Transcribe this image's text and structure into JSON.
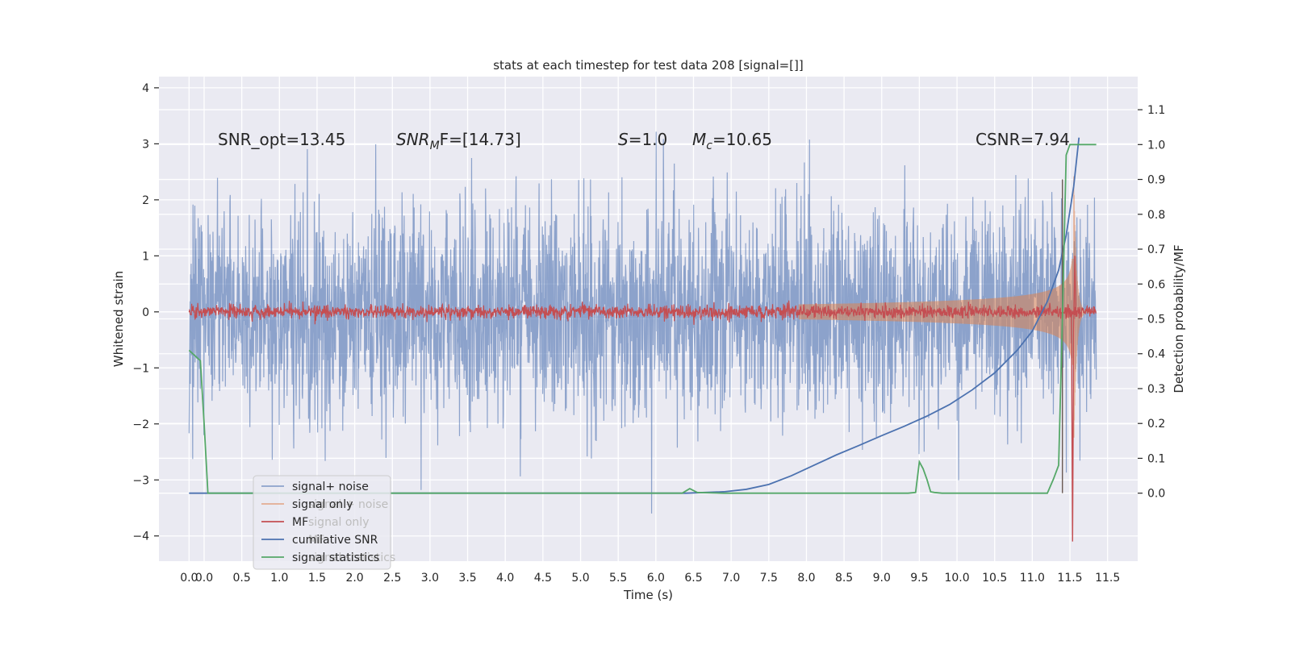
{
  "chart_data": {
    "type": "line",
    "title": "stats at each timestep for test data 208 [signal=[]]",
    "xlabel": "Time (s)",
    "ylabel": "Whitened strain",
    "y2label": "Detection probability/MF",
    "xlim": [
      -0.5,
      12.5
    ],
    "ylim": [
      -4.45,
      4.2
    ],
    "y2lim": [
      -0.195,
      1.195
    ],
    "grid": true,
    "legend_placement": "lower-left",
    "x_ticks": [
      "0.0",
      "0.5",
      "1.0",
      "1.5",
      "2.0",
      "2.5",
      "3.0",
      "3.5",
      "4.0",
      "4.5",
      "5.0",
      "5.5",
      "6.0",
      "6.5",
      "7.0",
      "7.5",
      "8.0",
      "8.5",
      "9.0",
      "9.5",
      "10.0",
      "10.5",
      "11.0",
      "11.5"
    ],
    "x_tick_values": [
      0.0,
      0.5,
      1.0,
      1.5,
      2.0,
      2.5,
      3.0,
      3.5,
      4.0,
      4.5,
      5.0,
      5.5,
      6.0,
      6.5,
      7.0,
      7.5,
      8.0,
      8.5,
      9.0,
      9.5,
      10.0,
      10.5,
      11.0,
      11.5
    ],
    "extra_x_tick": {
      "label": "0.0",
      "value": 0.0
    },
    "extra_x_tick_2": {
      "label": "11.5",
      "value": 11.5
    },
    "x_ticks_display": [
      "0.0",
      "0.0",
      "0.5",
      "1.0",
      "1.5",
      "2.0",
      "2.5",
      "3.0",
      "3.5",
      "4.0",
      "4.5",
      "5.0",
      "5.5",
      "6.0",
      "6.5",
      "7.0",
      "7.5",
      "8.0",
      "8.5",
      "9.0",
      "9.5",
      "10.0",
      "10.5",
      "11.0",
      "11.5",
      "11.5"
    ],
    "x_ticks_display_values": [
      -0.1,
      0.1,
      0.6,
      1.1,
      1.6,
      2.1,
      2.6,
      3.1,
      3.6,
      4.1,
      4.6,
      5.1,
      5.6,
      6.1,
      6.6,
      7.1,
      7.6,
      8.1,
      8.6,
      9.1,
      9.6,
      10.1,
      10.6,
      11.1,
      11.6,
      12.1
    ],
    "y_ticks": [
      "4",
      "3",
      "2",
      "1",
      "0",
      "−1",
      "−2",
      "−3",
      "−4"
    ],
    "y_tick_values": [
      4,
      3,
      2,
      1,
      0,
      -1,
      -2,
      -3,
      -4
    ],
    "y2_ticks": [
      "1.1",
      "1.0",
      "0.9",
      "0.8",
      "0.7",
      "0.6",
      "0.5",
      "0.4",
      "0.3",
      "0.2",
      "0.1",
      "0.0"
    ],
    "y2_tick_values": [
      1.1,
      1.0,
      0.9,
      0.8,
      0.7,
      0.6,
      0.5,
      0.4,
      0.3,
      0.2,
      0.1,
      0.0
    ],
    "annotations": {
      "snr_opt": "SNR_opt=13.45",
      "snr_mf_prefix": "SNR",
      "snr_mf_sub": "M",
      "snr_mf_suffix": "F=[14.73]",
      "s_italic": "S",
      "s_value": "=1.0",
      "mc_italic": "M",
      "mc_sub": "c",
      "mc_value": "=10.65",
      "csnr": "CSNR=7.94"
    },
    "series": [
      {
        "name": "signal+ noise",
        "color": "#4c72b0",
        "opacity": 0.5,
        "axis": "left",
        "shape": "noise",
        "std": 1.0,
        "x_start": -0.1,
        "x_end": 11.95
      },
      {
        "name": "signal only",
        "color": "#dd8452",
        "opacity": 0.5,
        "axis": "left",
        "shape": "chirp",
        "x_start": 8.0,
        "x_end": 11.95,
        "peak_amplitude": 2.5,
        "peak_time": 11.65
      },
      {
        "name": "MF",
        "color": "#c44e52",
        "axis": "left",
        "shape": "small-noise",
        "std": 0.06,
        "x_start": -0.1,
        "x_end": 11.95,
        "spike_time": 11.65,
        "spike_min": -4.1,
        "spike_max": 1.0
      },
      {
        "name": "cumilative SNR",
        "color": "#4c72b0",
        "axis": "right",
        "x": [
          -0.1,
          6.5,
          7.0,
          7.3,
          7.6,
          7.9,
          8.2,
          8.5,
          8.8,
          9.1,
          9.4,
          9.7,
          10.0,
          10.3,
          10.6,
          10.9,
          11.1,
          11.3,
          11.45,
          11.55,
          11.65,
          11.72
        ],
        "y": [
          0.0,
          0.0,
          0.004,
          0.011,
          0.025,
          0.05,
          0.08,
          0.11,
          0.137,
          0.165,
          0.192,
          0.221,
          0.254,
          0.296,
          0.345,
          0.41,
          0.465,
          0.55,
          0.64,
          0.74,
          0.88,
          1.02
        ]
      },
      {
        "name": "signal statistics",
        "color": "#55a868",
        "axis": "right",
        "x": [
          -0.1,
          -0.05,
          0.0,
          0.05,
          0.1,
          0.15,
          0.2,
          1.0,
          2.0,
          3.0,
          4.0,
          5.0,
          6.0,
          6.45,
          6.55,
          6.65,
          7.0,
          8.0,
          9.0,
          9.45,
          9.55,
          9.6,
          9.65,
          9.7,
          9.75,
          9.8,
          9.9,
          10.5,
          11.0,
          11.3,
          11.38,
          11.45,
          11.5,
          11.55,
          11.6,
          11.95
        ],
        "y": [
          0.41,
          0.4,
          0.39,
          0.38,
          0.2,
          0.0,
          0.0,
          0.0,
          0.0,
          0.0,
          0.0,
          0.0,
          0.0,
          0.0,
          0.013,
          0.002,
          0.0,
          0.0,
          0.0,
          0.0,
          0.002,
          0.09,
          0.07,
          0.04,
          0.004,
          0.002,
          0.0,
          0.0,
          0.0,
          0.0,
          0.04,
          0.08,
          0.5,
          0.97,
          1.0,
          1.0
        ]
      }
    ],
    "legend": [
      {
        "label": "signal+ noise",
        "ghost": ""
      },
      {
        "label": "signal only",
        "ghost": "signal + noise"
      },
      {
        "label": "MF",
        "ghost": "signal only"
      },
      {
        "label": "cumilative SNR",
        "ghost": "MF"
      },
      {
        "label": "signal statistics",
        "ghost": "signal statistics"
      }
    ]
  }
}
